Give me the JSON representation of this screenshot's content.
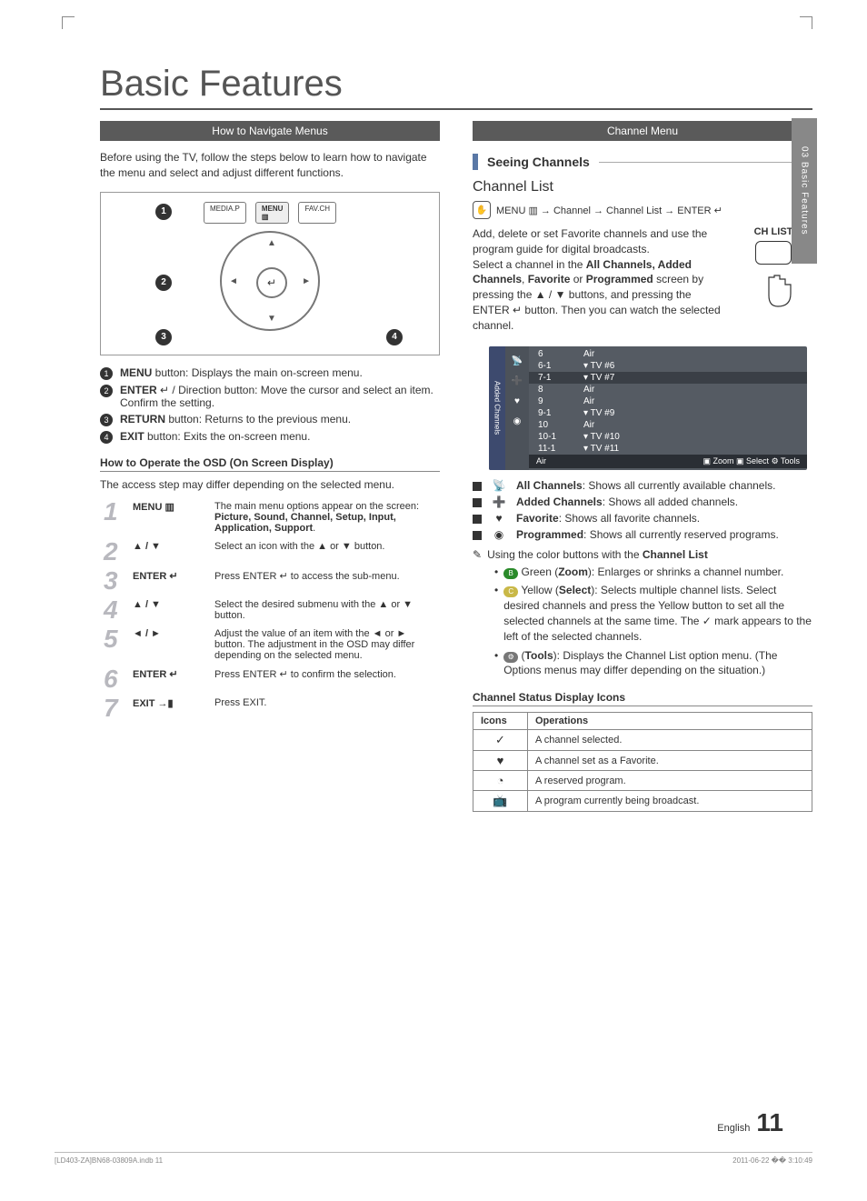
{
  "page": {
    "title": "Basic Features",
    "side_tab": "03  Basic Features",
    "english_label": "English",
    "page_number": "11",
    "footer_left": "[LD403-ZA]BN68-03809A.indb   11",
    "footer_right": "2011-06-22   �� 3:10:49"
  },
  "left": {
    "nav_bar": "How to Navigate Menus",
    "nav_intro": "Before using the TV, follow the steps below to learn how to navigate the menu and select and adjust different functions.",
    "remote": {
      "btn1": "MEDIA.P",
      "btn2": "MENU",
      "btn3": "FAV.CH",
      "menu_icon": "▥",
      "enter_glyph": "↵"
    },
    "callouts": [
      {
        "n": "1",
        "label": "MENU",
        "text": " button: Displays the main on-screen menu."
      },
      {
        "n": "2",
        "label": "ENTER",
        "glyph": "↵",
        "text": " / Direction button: Move the cursor and select an item. Confirm the setting."
      },
      {
        "n": "3",
        "label": "RETURN",
        "text": " button: Returns to the previous menu."
      },
      {
        "n": "4",
        "label": "EXIT",
        "text": " button: Exits the on-screen menu."
      }
    ],
    "osd_head": "How to Operate the OSD (On Screen Display)",
    "osd_note": "The access step may differ depending on the selected menu.",
    "osd_steps": [
      {
        "n": "1",
        "label": "MENU ▥",
        "text1": "The main menu options appear on the screen:",
        "bold": "Picture, Sound, Channel, Setup, Input, Application, Support"
      },
      {
        "n": "2",
        "label": "▲ / ▼",
        "text1": "Select an icon with the ▲ or ▼ button."
      },
      {
        "n": "3",
        "label": "ENTER ↵",
        "text1": "Press ENTER ↵ to access the sub-menu."
      },
      {
        "n": "4",
        "label": "▲ / ▼",
        "text1": "Select the desired submenu with the ▲ or ▼ button."
      },
      {
        "n": "5",
        "label": "◄ / ►",
        "text1": "Adjust the value of an item with the ◄ or ► button. The adjustment in the OSD may differ depending on the selected menu."
      },
      {
        "n": "6",
        "label": "ENTER ↵",
        "text1": "Press ENTER ↵ to confirm the selection."
      },
      {
        "n": "7",
        "label": "EXIT →▮",
        "text1": "Press EXIT."
      }
    ]
  },
  "right": {
    "menu_bar": "Channel Menu",
    "section_head": "Seeing Channels",
    "channel_list_title": "Channel List",
    "menu_path": "MENU ▥ → Channel → Channel List → ENTER ↵",
    "ch_list_label": "CH LIST",
    "desc1": "Add, delete or set Favorite channels and use the program guide for digital broadcasts.",
    "desc2a": "Select a channel in the ",
    "desc2b": "All Channels, Added Channels",
    "desc2c": ", ",
    "desc2d": "Favorite",
    "desc2e": " or ",
    "desc2f": "Programmed",
    "desc3": " screen by pressing the ▲ / ▼ buttons, and pressing the ENTER ↵ button. Then you can watch the selected channel.",
    "panel": {
      "side_label": "Added Channels",
      "rows": [
        {
          "num": "6",
          "name": "Air"
        },
        {
          "num": "6-1",
          "name": "▾ TV #6"
        },
        {
          "num": "7-1",
          "name": "▾ TV #7",
          "hl": true
        },
        {
          "num": "8",
          "name": "Air"
        },
        {
          "num": "9",
          "name": "Air"
        },
        {
          "num": "9-1",
          "name": "▾ TV #9"
        },
        {
          "num": "10",
          "name": "Air"
        },
        {
          "num": "10-1",
          "name": "▾ TV #10"
        },
        {
          "num": "11-1",
          "name": "▾ TV #11"
        }
      ],
      "footer_left": "Air",
      "footer_zoom": "▣ Zoom",
      "footer_select": "▣ Select",
      "footer_tools": "⚙ Tools"
    },
    "legend": [
      {
        "icon": "📡",
        "bold": "All Channels",
        "text": ": Shows all currently available channels."
      },
      {
        "icon": "➕",
        "bold": "Added Channels",
        "text": ": Shows all added channels."
      },
      {
        "icon": "♥",
        "bold": "Favorite",
        "text": ": Shows all favorite channels."
      },
      {
        "icon": "◉",
        "bold": "Programmed",
        "text": ": Shows all currently reserved programs."
      }
    ],
    "color_note_head": "Using the color buttons with the ",
    "color_note_head_bold": "Channel List",
    "color_items": [
      {
        "badge": "B",
        "badge_color": "#2a8a2a",
        "label": "Green (",
        "bold": "Zoom",
        "text": "): Enlarges or shrinks a channel number."
      },
      {
        "badge": "C",
        "badge_color": "#c9b847",
        "label": "Yellow (",
        "bold": "Select",
        "text": "): Selects multiple channel lists. Select desired channels and press the Yellow button to set all the selected channels at the same time. The ✓ mark appears to the left of the selected channels."
      },
      {
        "badge": "⚙",
        "badge_color": "#777",
        "label": "(",
        "bold": "Tools",
        "text": "): Displays the Channel List option menu. (The Options menus may differ depending on the situation.)"
      }
    ],
    "status_head": "Channel Status Display Icons",
    "status_table": {
      "h1": "Icons",
      "h2": "Operations",
      "rows": [
        {
          "icon": "✓",
          "text": "A channel selected."
        },
        {
          "icon": "♥",
          "text": "A channel set as a Favorite."
        },
        {
          "icon": "◔",
          "text": "A reserved program."
        },
        {
          "icon": "📺",
          "text": "A program currently being broadcast."
        }
      ]
    }
  }
}
